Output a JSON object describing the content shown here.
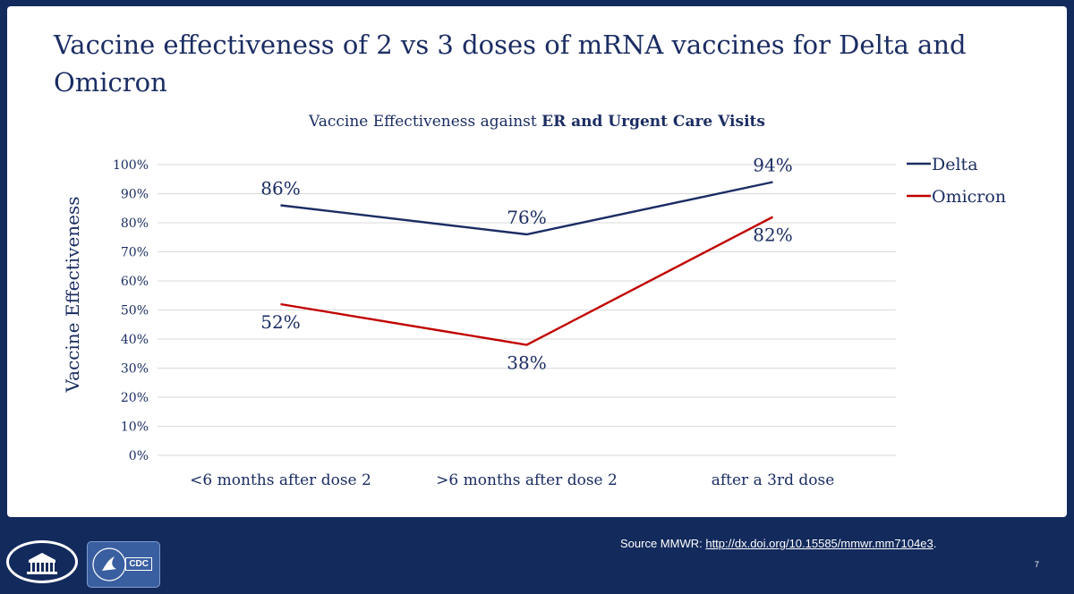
{
  "slide": {
    "title": "Vaccine effectiveness of 2 vs 3 doses of mRNA vaccines for Delta and Omicron",
    "source_label": "Source MMWR: ",
    "source_link": "http://dx.doi.org/10.15585/mmwr.mm7104e3",
    "source_end": ".",
    "page_number": "7",
    "logos": {
      "cdc": "CDC"
    }
  },
  "chart_data": {
    "type": "line",
    "title_prefix": "Vaccine Effectiveness against ",
    "title_bold": "ER and Urgent Care Visits",
    "ylabel": "Vaccine Effectiveness",
    "xlabel": "",
    "categories": [
      "<6 months after dose 2",
      ">6 months after dose 2",
      "after a 3rd dose"
    ],
    "ylim": [
      0,
      100
    ],
    "yticks": [
      0,
      10,
      20,
      30,
      40,
      50,
      60,
      70,
      80,
      90,
      100
    ],
    "ytick_labels": [
      "0%",
      "10%",
      "20%",
      "30%",
      "40%",
      "50%",
      "60%",
      "70%",
      "80%",
      "90%",
      "100%"
    ],
    "grid": true,
    "legend_position": "right",
    "series": [
      {
        "name": "Delta",
        "color": "#1b2d63",
        "values": [
          86,
          76,
          94
        ],
        "labels": [
          "86%",
          "76%",
          "94%"
        ],
        "label_side": [
          "above",
          "above",
          "above"
        ]
      },
      {
        "name": "Omicron",
        "color": "#c00000",
        "values": [
          52,
          38,
          82
        ],
        "labels": [
          "52%",
          "38%",
          "82%"
        ],
        "label_side": [
          "below",
          "below",
          "below"
        ]
      }
    ]
  }
}
